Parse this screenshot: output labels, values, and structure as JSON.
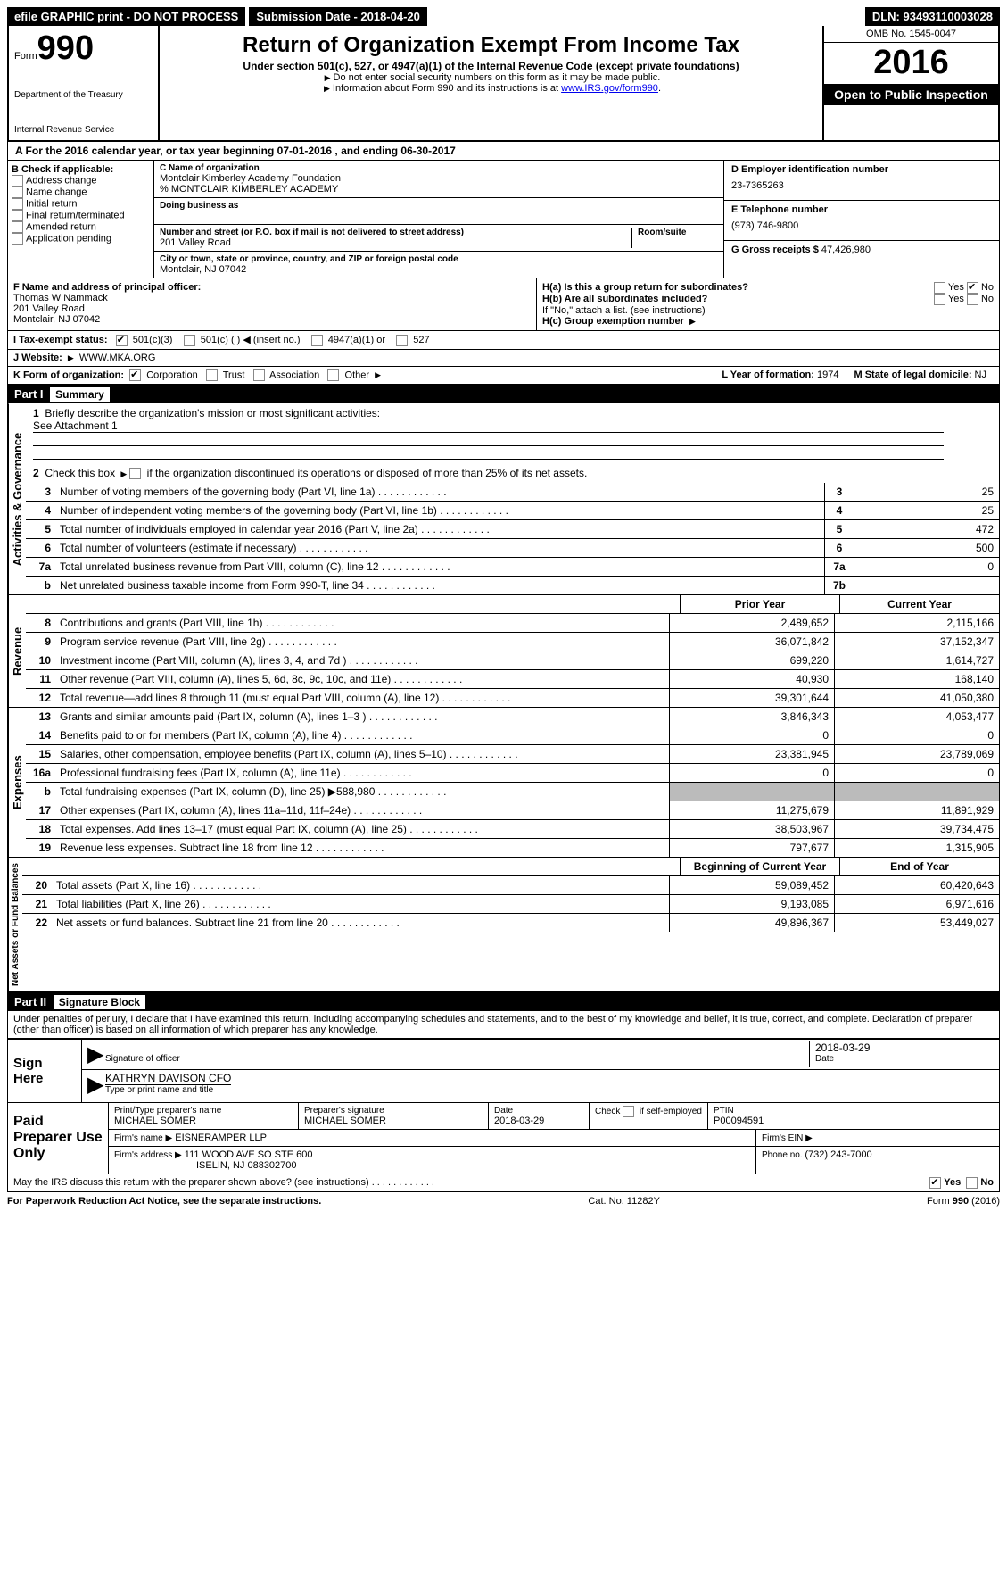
{
  "topbar": {
    "efile": "efile GRAPHIC print - DO NOT PROCESS",
    "submission_label": "Submission Date - ",
    "submission_date": "2018-04-20",
    "dln_label": "DLN: ",
    "dln": "93493110003028"
  },
  "header": {
    "form_prefix": "Form",
    "form_no": "990",
    "dept1": "Department of the Treasury",
    "dept2": "Internal Revenue Service",
    "title": "Return of Organization Exempt From Income Tax",
    "subtitle": "Under section 501(c), 527, or 4947(a)(1) of the Internal Revenue Code (except private foundations)",
    "note1": "Do not enter social security numbers on this form as it may be made public.",
    "note2_pre": "Information about Form 990 and its instructions is at ",
    "note2_link": "www.IRS.gov/form990",
    "omb": "OMB No. 1545-0047",
    "year": "2016",
    "open": "Open to Public Inspection"
  },
  "sectionA": {
    "text_pre": "A  For the 2016 calendar year, or tax year beginning ",
    "begin": "07-01-2016",
    "mid": "  , and ending ",
    "end": "06-30-2017"
  },
  "boxB": {
    "label": "B Check if applicable:",
    "items": [
      "Address change",
      "Name change",
      "Initial return",
      "Final return/terminated",
      "Amended return",
      "Application pending"
    ]
  },
  "boxC": {
    "name_lbl": "C Name of organization",
    "name": "Montclair Kimberley Academy Foundation",
    "careof": "% MONTCLAIR KIMBERLEY ACADEMY",
    "dba_lbl": "Doing business as",
    "street_lbl": "Number and street (or P.O. box if mail is not delivered to street address)",
    "room_lbl": "Room/suite",
    "street": "201 Valley Road",
    "city_lbl": "City or town, state or province, country, and ZIP or foreign postal code",
    "city": "Montclair, NJ  07042"
  },
  "boxD": {
    "lbl": "D Employer identification number",
    "val": "23-7365263"
  },
  "boxE": {
    "lbl": "E Telephone number",
    "val": "(973) 746-9800"
  },
  "boxG": {
    "lbl": "G Gross receipts $ ",
    "val": "47,426,980"
  },
  "boxF": {
    "lbl": "F Name and address of principal officer:",
    "name": "Thomas W Nammack",
    "addr1": "201 Valley Road",
    "addr2": "Montclair, NJ  07042"
  },
  "boxH": {
    "a": "H(a)  Is this a group return for subordinates?",
    "b": "H(b)  Are all subordinates included?",
    "note": "If \"No,\" attach a list. (see instructions)",
    "c": "H(c)  Group exemption number",
    "yes": "Yes",
    "no": "No"
  },
  "boxI": {
    "lbl": "I  Tax-exempt status:",
    "o1": "501(c)(3)",
    "o2": "501(c) (  )",
    "o2b": "(insert no.)",
    "o3": "4947(a)(1) or",
    "o4": "527"
  },
  "boxJ": {
    "lbl": "J  Website:",
    "val": "WWW.MKA.ORG"
  },
  "boxK": {
    "lbl": "K Form of organization:",
    "o1": "Corporation",
    "o2": "Trust",
    "o3": "Association",
    "o4": "Other"
  },
  "boxL": {
    "lbl": "L Year of formation: ",
    "val": "1974"
  },
  "boxM": {
    "lbl": "M State of legal domicile: ",
    "val": "NJ"
  },
  "part1": {
    "label": "Part I",
    "title": "Summary"
  },
  "tabs": {
    "gov": "Activities & Governance",
    "rev": "Revenue",
    "exp": "Expenses",
    "net": "Net Assets or Fund Balances"
  },
  "gov": {
    "l1": "Briefly describe the organization's mission or most significant activities:",
    "l1v": "See Attachment 1",
    "l2": "Check this box",
    "l2b": "if the organization discontinued its operations or disposed of more than 25% of its net assets.",
    "l3": "Number of voting members of the governing body (Part VI, line 1a)",
    "l4": "Number of independent voting members of the governing body (Part VI, line 1b)",
    "l5": "Total number of individuals employed in calendar year 2016 (Part V, line 2a)",
    "l6": "Total number of volunteers (estimate if necessary)",
    "l7a": "Total unrelated business revenue from Part VIII, column (C), line 12",
    "l7b": "Net unrelated business taxable income from Form 990-T, line 34",
    "v3": "25",
    "v4": "25",
    "v5": "472",
    "v6": "500",
    "v7a": "0",
    "v7b": ""
  },
  "fin_hdr": {
    "prior": "Prior Year",
    "current": "Current Year"
  },
  "rev": [
    {
      "n": "8",
      "t": "Contributions and grants (Part VIII, line 1h)",
      "p": "2,489,652",
      "c": "2,115,166"
    },
    {
      "n": "9",
      "t": "Program service revenue (Part VIII, line 2g)",
      "p": "36,071,842",
      "c": "37,152,347"
    },
    {
      "n": "10",
      "t": "Investment income (Part VIII, column (A), lines 3, 4, and 7d )",
      "p": "699,220",
      "c": "1,614,727"
    },
    {
      "n": "11",
      "t": "Other revenue (Part VIII, column (A), lines 5, 6d, 8c, 9c, 10c, and 11e)",
      "p": "40,930",
      "c": "168,140"
    },
    {
      "n": "12",
      "t": "Total revenue—add lines 8 through 11 (must equal Part VIII, column (A), line 12)",
      "p": "39,301,644",
      "c": "41,050,380"
    }
  ],
  "exp": [
    {
      "n": "13",
      "t": "Grants and similar amounts paid (Part IX, column (A), lines 1–3 )",
      "p": "3,846,343",
      "c": "4,053,477"
    },
    {
      "n": "14",
      "t": "Benefits paid to or for members (Part IX, column (A), line 4)",
      "p": "0",
      "c": "0"
    },
    {
      "n": "15",
      "t": "Salaries, other compensation, employee benefits (Part IX, column (A), lines 5–10)",
      "p": "23,381,945",
      "c": "23,789,069"
    },
    {
      "n": "16a",
      "t": "Professional fundraising fees (Part IX, column (A), line 11e)",
      "p": "0",
      "c": "0"
    },
    {
      "n": "b",
      "t": "Total fundraising expenses (Part IX, column (D), line 25) ▶588,980",
      "p": "GRAY",
      "c": "GRAY"
    },
    {
      "n": "17",
      "t": "Other expenses (Part IX, column (A), lines 11a–11d, 11f–24e)",
      "p": "11,275,679",
      "c": "11,891,929"
    },
    {
      "n": "18",
      "t": "Total expenses. Add lines 13–17 (must equal Part IX, column (A), line 25)",
      "p": "38,503,967",
      "c": "39,734,475"
    },
    {
      "n": "19",
      "t": "Revenue less expenses. Subtract line 18 from line 12",
      "p": "797,677",
      "c": "1,315,905"
    }
  ],
  "net_hdr": {
    "beg": "Beginning of Current Year",
    "end": "End of Year"
  },
  "net": [
    {
      "n": "20",
      "t": "Total assets (Part X, line 16)",
      "p": "59,089,452",
      "c": "60,420,643"
    },
    {
      "n": "21",
      "t": "Total liabilities (Part X, line 26)",
      "p": "9,193,085",
      "c": "6,971,616"
    },
    {
      "n": "22",
      "t": "Net assets or fund balances. Subtract line 21 from line 20",
      "p": "49,896,367",
      "c": "53,449,027"
    }
  ],
  "part2": {
    "label": "Part II",
    "title": "Signature Block"
  },
  "perjury": "Under penalties of perjury, I declare that I have examined this return, including accompanying schedules and statements, and to the best of my knowledge and belief, it is true, correct, and complete. Declaration of preparer (other than officer) is based on all information of which preparer has any knowledge.",
  "sign": {
    "here": "Sign Here",
    "sig_lbl": "Signature of officer",
    "date": "2018-03-29",
    "date_lbl": "Date",
    "name": "KATHRYN DAVISON CFO",
    "name_lbl": "Type or print name and title"
  },
  "prep": {
    "label": "Paid Preparer Use Only",
    "name_lbl": "Print/Type preparer's name",
    "name": "MICHAEL SOMER",
    "sig_lbl": "Preparer's signature",
    "sig": "MICHAEL SOMER",
    "date_lbl": "Date",
    "date": "2018-03-29",
    "check_lbl": "Check         if self-employed",
    "ptin_lbl": "PTIN",
    "ptin": "P00094591",
    "firm_lbl": "Firm's name     ▶",
    "firm": "EISNERAMPER LLP",
    "ein_lbl": "Firm's EIN ▶",
    "addr_lbl": "Firm's address ▶",
    "addr1": "111 WOOD AVE SO STE 600",
    "addr2": "ISELIN, NJ  088302700",
    "phone_lbl": "Phone no. ",
    "phone": "(732) 243-7000"
  },
  "discuss": "May the IRS discuss this return with the preparer shown above? (see instructions)",
  "footer": {
    "pra": "For Paperwork Reduction Act Notice, see the separate instructions.",
    "cat": "Cat. No. 11282Y",
    "form": "Form 990 (2016)"
  }
}
